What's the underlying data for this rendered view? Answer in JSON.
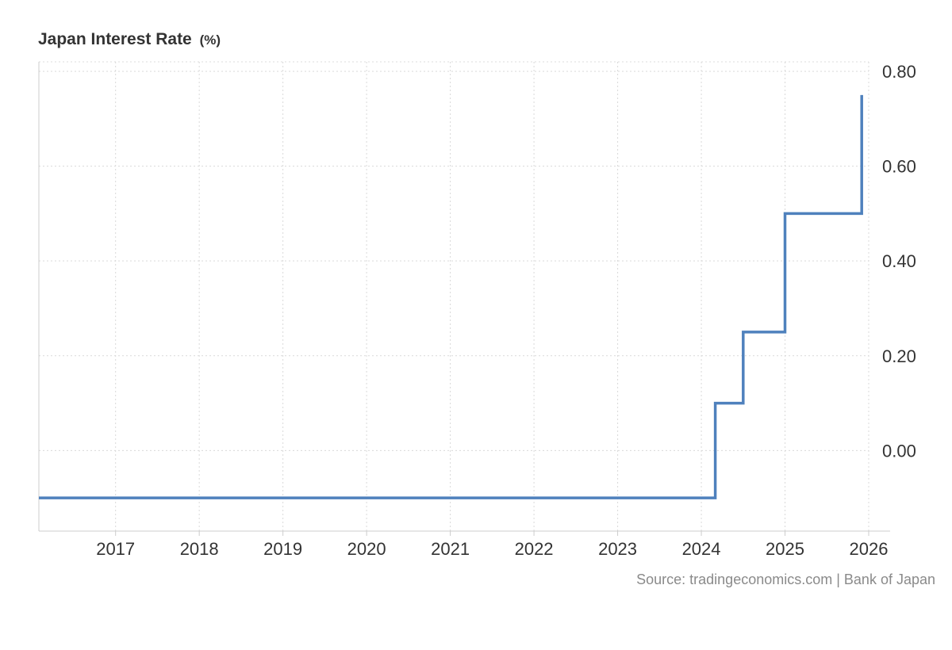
{
  "chart_data": {
    "type": "line",
    "title": "Japan Interest Rate",
    "title_unit": "(%)",
    "source": "Source: tradingeconomics.com | Bank of Japan",
    "xlabel": "",
    "ylabel": "",
    "x_ticks": [
      "2017",
      "2018",
      "2019",
      "2020",
      "2021",
      "2022",
      "2023",
      "2024",
      "2025",
      "2026"
    ],
    "y_ticks": [
      "0.80",
      "0.60",
      "0.40",
      "0.20",
      "0.00"
    ],
    "xlim": [
      "2016-02",
      "2026-01"
    ],
    "ylim": [
      -0.17,
      0.81
    ],
    "y_axis_position": "right",
    "grid": true,
    "legend": "none",
    "series": [
      {
        "color": "#4f81bd",
        "step": true,
        "points": [
          {
            "x": "2016-02",
            "y": -0.1
          },
          {
            "x": "2024-03",
            "y": 0.1
          },
          {
            "x": "2024-07",
            "y": 0.25
          },
          {
            "x": "2025-01",
            "y": 0.5
          },
          {
            "x": "2025-12",
            "y": 0.75
          }
        ]
      }
    ]
  }
}
